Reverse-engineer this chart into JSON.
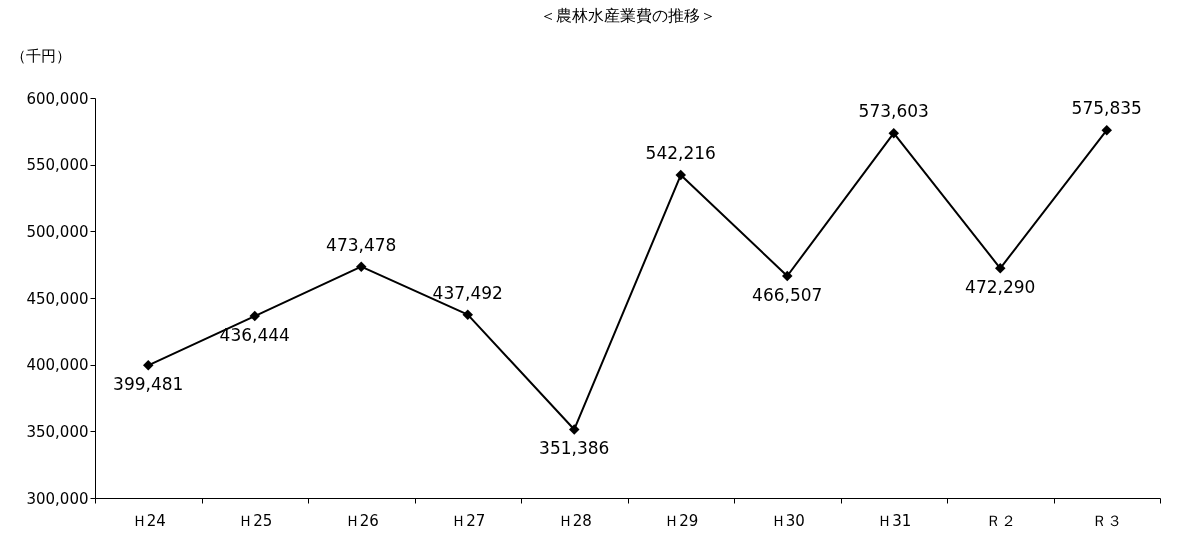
{
  "chart_data": {
    "type": "line",
    "title": "＜農林水産業費の推移＞",
    "ylabel": "（千円）",
    "categories": [
      "Ｈ24",
      "Ｈ25",
      "Ｈ26",
      "Ｈ27",
      "Ｈ28",
      "Ｈ29",
      "Ｈ30",
      "Ｈ31",
      "Ｒ２",
      "Ｒ３"
    ],
    "series": [
      {
        "color": "#000000",
        "values": [
          399481,
          436444,
          473478,
          437492,
          351386,
          542216,
          466507,
          573603,
          472290,
          575835
        ],
        "value_labels": [
          "399,481",
          "436,444",
          "473,478",
          "437,492",
          "351,386",
          "542,216",
          "466,507",
          "573,603",
          "472,290",
          "575,835"
        ]
      }
    ],
    "ylim": [
      300000,
      600000
    ],
    "yticks": [
      {
        "value": 300000,
        "label": "300,000"
      },
      {
        "value": 350000,
        "label": "350,000"
      },
      {
        "value": 400000,
        "label": "400,000"
      },
      {
        "value": 450000,
        "label": "450,000"
      },
      {
        "value": 500000,
        "label": "500,000"
      },
      {
        "value": 550000,
        "label": "550,000"
      },
      {
        "value": 600000,
        "label": "600,000"
      }
    ],
    "marker": "diamond",
    "line_style": "solid",
    "grid": false
  }
}
